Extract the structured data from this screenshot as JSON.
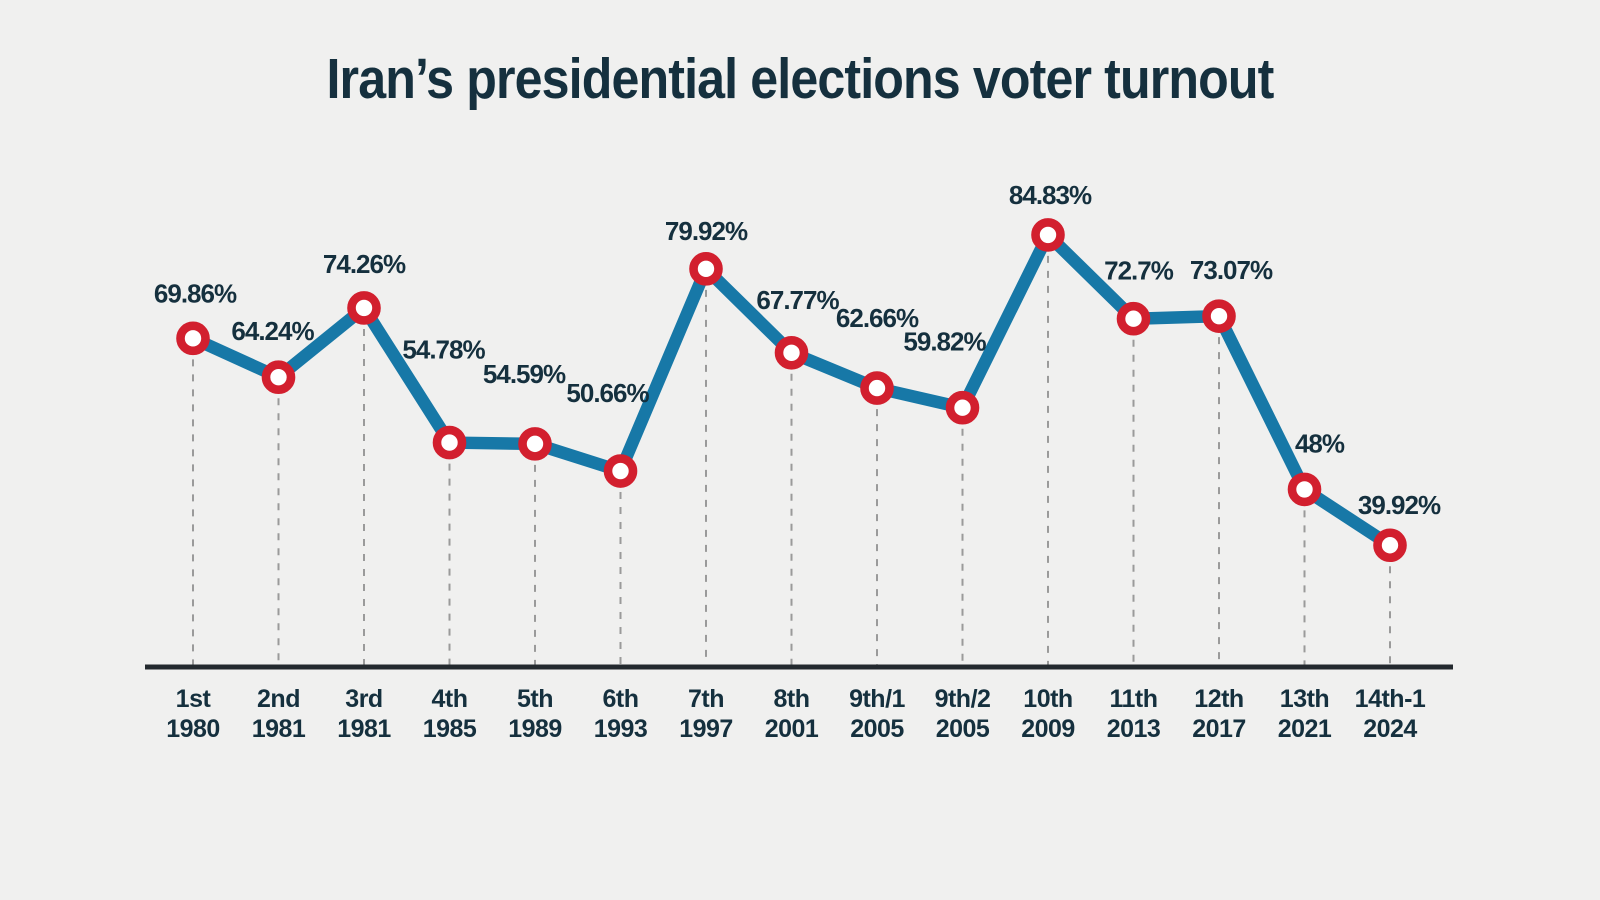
{
  "title": "Iran’s presidential elections voter turnout",
  "colors": {
    "background": "#f0f0ef",
    "line": "#1778a7",
    "marker_ring": "#d21f2e",
    "marker_center": "#ffffff",
    "text": "#15303e",
    "axis": "#23292e",
    "dropline": "#9a9a9a"
  },
  "chart_data": {
    "type": "line",
    "title": "Iran’s presidential elections voter turnout",
    "value_suffix": "%",
    "ylim": [
      22,
      95
    ],
    "legend_position": "none",
    "gridlines": "vertical-dashed-droplines",
    "points": [
      {
        "election": "1st",
        "year": "1980",
        "turnout_pct": 69.86,
        "label": "69.86%"
      },
      {
        "election": "2nd",
        "year": "1981",
        "turnout_pct": 64.24,
        "label": "64.24%"
      },
      {
        "election": "3rd",
        "year": "1981",
        "turnout_pct": 74.26,
        "label": "74.26%"
      },
      {
        "election": "4th",
        "year": "1985",
        "turnout_pct": 54.78,
        "label": "54.78%"
      },
      {
        "election": "5th",
        "year": "1989",
        "turnout_pct": 54.59,
        "label": "54.59%"
      },
      {
        "election": "6th",
        "year": "1993",
        "turnout_pct": 50.66,
        "label": "50.66%"
      },
      {
        "election": "7th",
        "year": "1997",
        "turnout_pct": 79.92,
        "label": "79.92%"
      },
      {
        "election": "8th",
        "year": "2001",
        "turnout_pct": 67.77,
        "label": "67.77%"
      },
      {
        "election": "9th/1",
        "year": "2005",
        "turnout_pct": 62.66,
        "label": "62.66%"
      },
      {
        "election": "9th/2",
        "year": "2005",
        "turnout_pct": 59.82,
        "label": "59.82%"
      },
      {
        "election": "10th",
        "year": "2009",
        "turnout_pct": 84.83,
        "label": "84.83%"
      },
      {
        "election": "11th",
        "year": "2013",
        "turnout_pct": 72.7,
        "label": "72.7%"
      },
      {
        "election": "12th",
        "year": "2017",
        "turnout_pct": 73.07,
        "label": "73.07%"
      },
      {
        "election": "13th",
        "year": "2021",
        "turnout_pct": 48,
        "label": "48%"
      },
      {
        "election": "14th-1",
        "year": "2024",
        "turnout_pct": 39.92,
        "label": "39.92%"
      }
    ]
  }
}
